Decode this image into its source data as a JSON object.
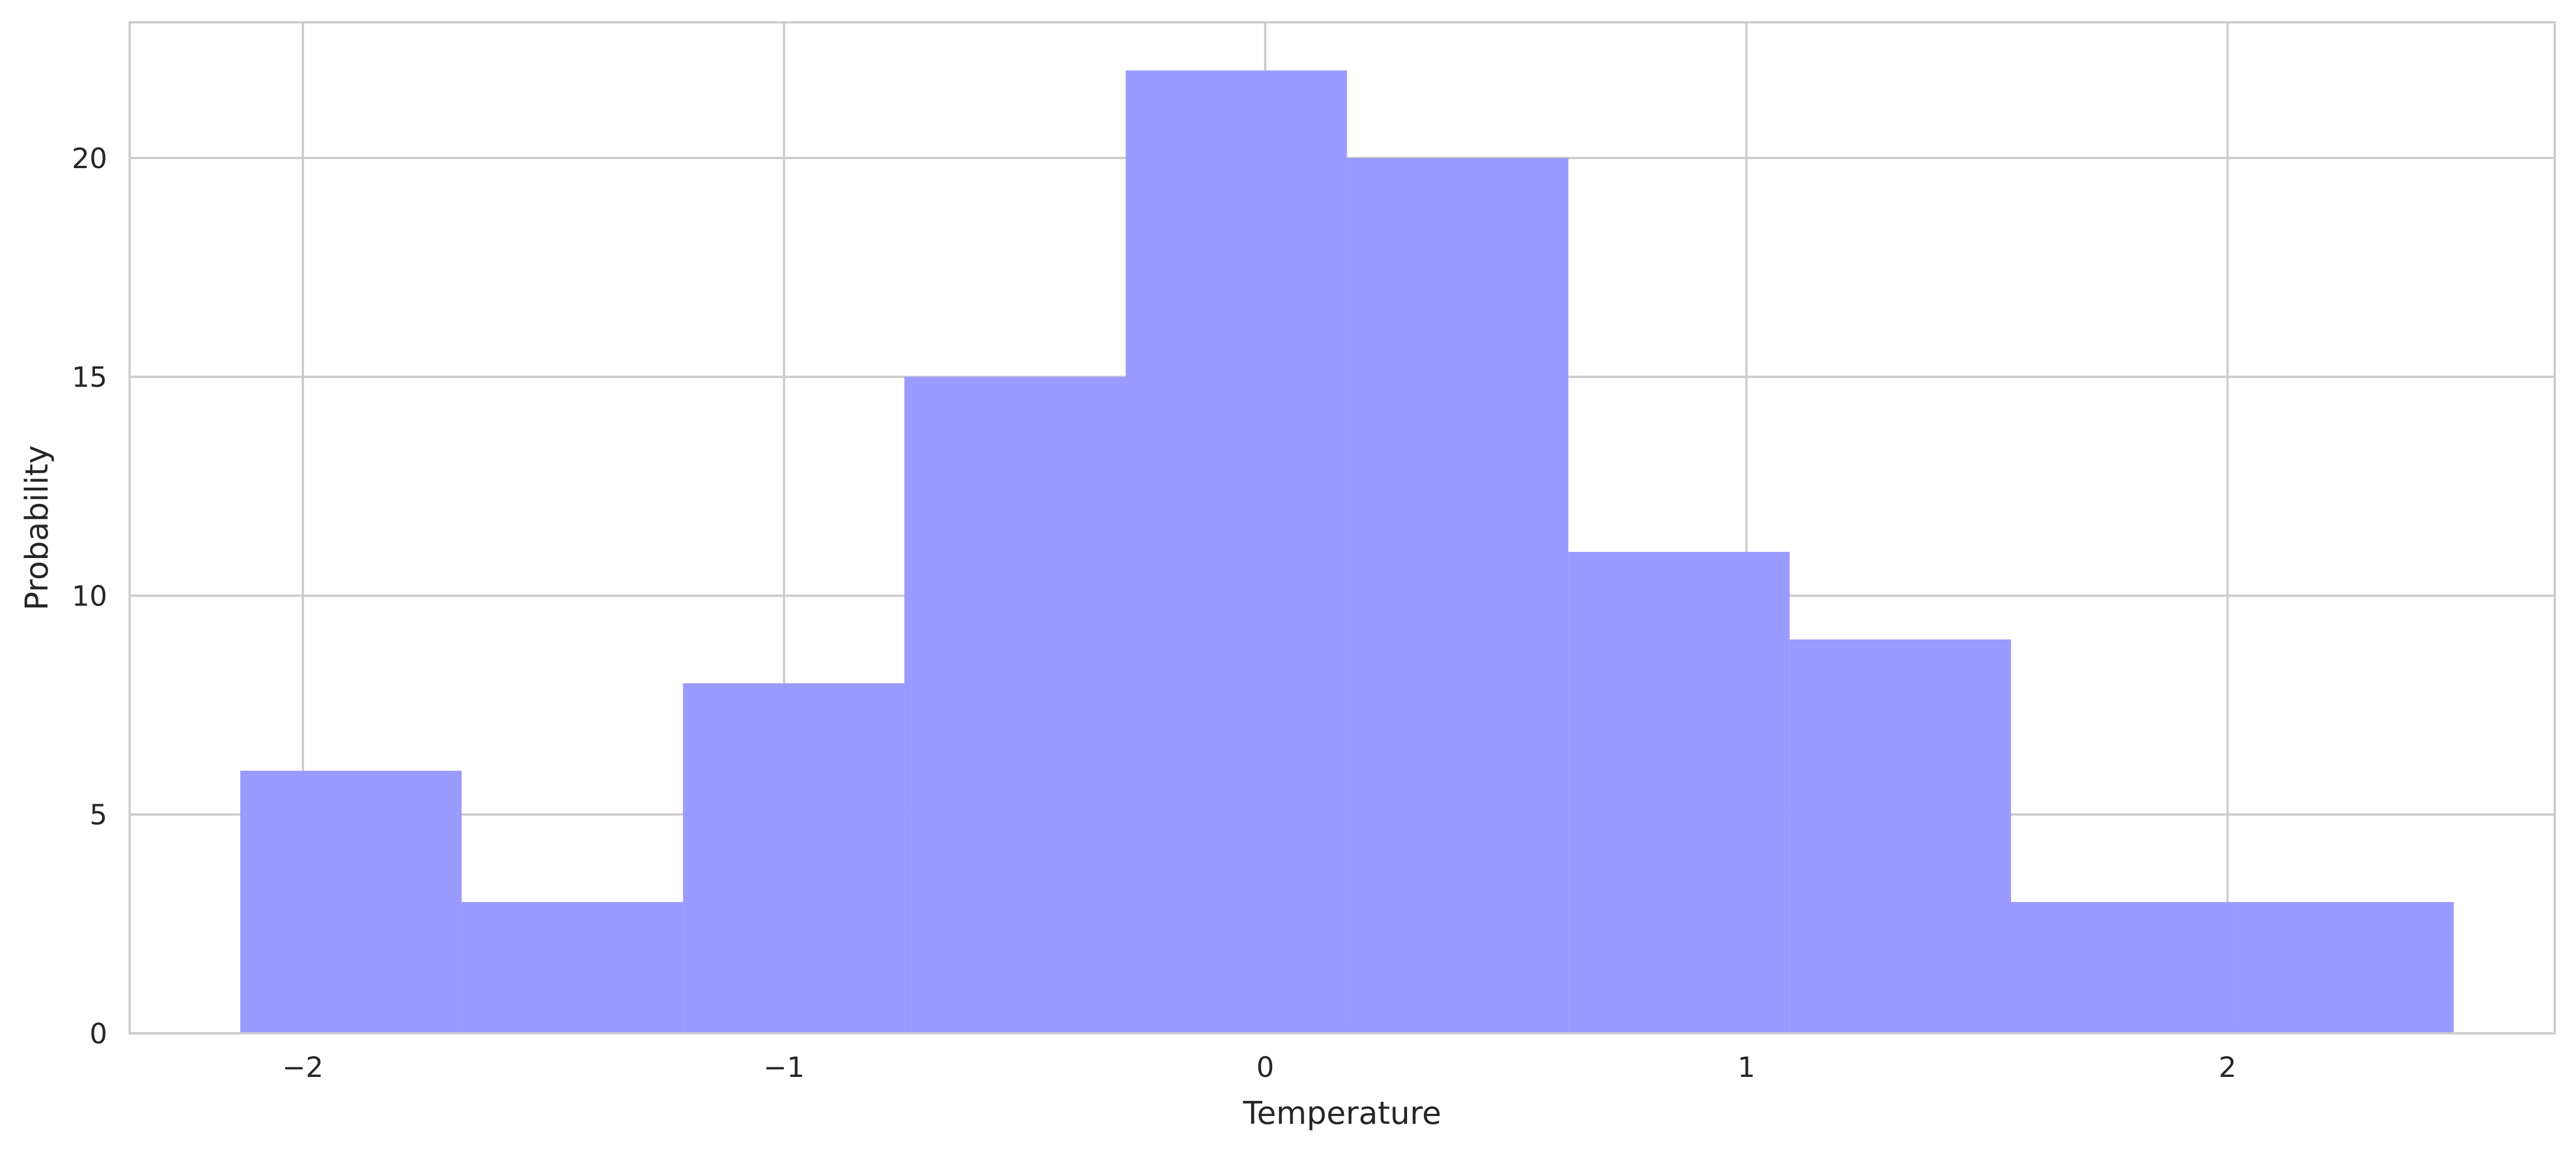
{
  "chart_data": {
    "type": "bar",
    "title": "",
    "xlabel": "Temperature",
    "ylabel": "Probability",
    "xlim": [
      -2.36,
      2.68
    ],
    "ylim": [
      0,
      23.1
    ],
    "bin_edges": [
      -2.13,
      -1.67,
      -1.21,
      -0.75,
      -0.29,
      0.17,
      0.63,
      1.09,
      1.55,
      2.01,
      2.47
    ],
    "values": [
      6,
      3,
      8,
      15,
      22,
      20,
      11,
      9,
      3,
      3
    ],
    "x_ticks": [
      -2,
      -1,
      0,
      1,
      2
    ],
    "x_tick_labels": [
      "−2",
      "−1",
      "0",
      "1",
      "2"
    ],
    "y_ticks": [
      0,
      5,
      10,
      15,
      20
    ],
    "y_tick_labels": [
      "0",
      "5",
      "10",
      "15",
      "20"
    ],
    "grid": true,
    "bar_color": "#9a9aff",
    "grid_color": "#cccccc",
    "text_color": "#262626"
  }
}
